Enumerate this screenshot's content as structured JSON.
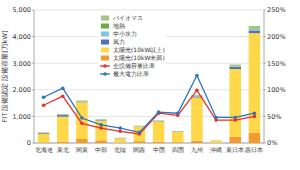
{
  "chart_data": {
    "type": "bar",
    "stacked": true,
    "grid": true,
    "legend": "top",
    "y_label": "FIT 設備認定 設備容量[万kW]",
    "categories": [
      "北海道",
      "東北",
      "関東",
      "中部",
      "北陸",
      "関西",
      "中国",
      "四国",
      "九州",
      "沖縄",
      "東日本",
      "西日本"
    ],
    "ylim": [
      0,
      5000
    ],
    "yticks": [
      0,
      {
        "value": 1000,
        "label": "1,000"
      },
      {
        "value": 2000,
        "label": "2,000"
      },
      {
        "value": 3000,
        "label": "3,000"
      },
      {
        "value": 4000,
        "label": "4,000"
      },
      {
        "value": 5000,
        "label": "5,000"
      }
    ],
    "y2lim": [
      0,
      250
    ],
    "y2ticks": [
      {
        "value": 0,
        "label": "0%"
      },
      {
        "value": 50,
        "label": "50%"
      },
      {
        "value": 100,
        "label": "100%"
      },
      {
        "value": 150,
        "label": "150%"
      },
      {
        "value": 200,
        "label": "200%"
      },
      {
        "value": 250,
        "label": "250%"
      }
    ],
    "series": [
      {
        "name": "太陽光(10kW未満)",
        "color": "#f59a2c",
        "values": [
          20,
          40,
          150,
          100,
          15,
          70,
          50,
          30,
          90,
          10,
          230,
          380
        ]
      },
      {
        "name": "太陽光(10kW以上)",
        "color": "#ffd84a",
        "values": [
          330,
          950,
          1380,
          740,
          160,
          540,
          760,
          390,
          1620,
          85,
          2550,
          3750
        ]
      },
      {
        "name": "風力",
        "color": "#5470b8",
        "values": [
          30,
          60,
          10,
          20,
          5,
          10,
          15,
          15,
          30,
          2,
          80,
          100
        ]
      },
      {
        "name": "中小水力",
        "color": "#7cc6e6",
        "values": [
          5,
          10,
          10,
          15,
          10,
          5,
          5,
          3,
          10,
          0,
          20,
          45
        ]
      },
      {
        "name": "地熱",
        "color": "#6aab45",
        "values": [
          2,
          5,
          0,
          0,
          0,
          0,
          0,
          0,
          15,
          0,
          5,
          15
        ]
      },
      {
        "name": "バイオマス",
        "color": "#a9c47f",
        "values": [
          15,
          30,
          50,
          25,
          10,
          25,
          20,
          10,
          35,
          3,
          65,
          110
        ]
      },
      {
        "name": "全設備容量比率",
        "type": "line",
        "axis": "y2",
        "marker": "circle",
        "color": "#e8312f",
        "values": [
          71,
          88,
          37,
          28,
          22,
          17,
          56,
          52,
          99,
          43,
          43,
          50
        ]
      },
      {
        "name": "最大電力比率",
        "type": "line",
        "axis": "y2",
        "marker": "circle",
        "color": "#2e75b6",
        "values": [
          86,
          103,
          47,
          34,
          28,
          20,
          58,
          56,
          127,
          48,
          48,
          56
        ]
      }
    ]
  }
}
